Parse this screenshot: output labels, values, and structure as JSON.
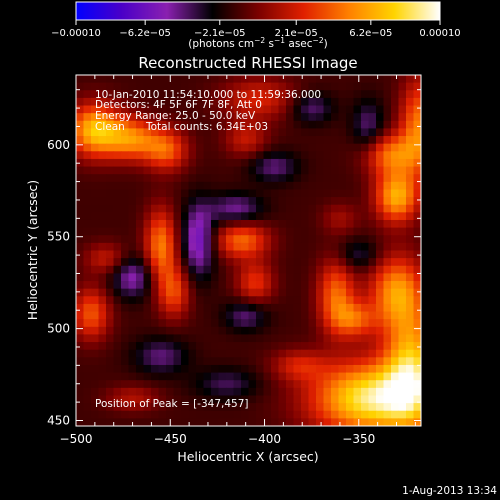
{
  "chart_data": {
    "type": "heatmap",
    "title": "Reconstructed RHESSI Image",
    "xlabel": "Heliocentric X (arcsec)",
    "ylabel": "Heliocentric Y (arcsec)",
    "xlim": [
      -500,
      -317
    ],
    "ylim": [
      447,
      638
    ],
    "x_ticks": [
      -500,
      -450,
      -400,
      -350
    ],
    "x_tick_labels": [
      "−500",
      "−450",
      "−400",
      "−350"
    ],
    "y_ticks": [
      450,
      500,
      550,
      600
    ],
    "y_tick_labels": [
      "450",
      "500",
      "550",
      "600"
    ],
    "colorbar": {
      "range": [
        -0.0001,
        0.0001
      ],
      "tick_values": [
        -0.0001,
        -6.2e-05,
        -2.1e-05,
        2.1e-05,
        6.2e-05,
        0.0001
      ],
      "tick_labels": [
        "−0.00010",
        "−6.2e−05",
        "−2.1e−05",
        "2.1e−05",
        "6.2e−05",
        "0.00010"
      ],
      "label": "(photons cm",
      "label_exp1": "−2",
      "label_mid": " s",
      "label_exp2": "−1",
      "label_mid2": " asec",
      "label_exp3": "−2",
      "label_end": ")",
      "colormap": [
        "#0000ff",
        "#4a00c8",
        "#8a20b0",
        "#000000",
        "#7a0000",
        "#e02000",
        "#ff8000",
        "#ffd400",
        "#ffffff"
      ]
    },
    "annotations": {
      "time_range": "10-Jan-2010 11:54:10.000 to 11:59:36.000",
      "detectors": "Detectors: 4F 5F 6F 7F 8F, Att 0",
      "energy": "Energy Range: 25.0 - 50.0 keV",
      "method": "Clean",
      "counts": "Total counts: 6.34E+03",
      "peak": "Position of Peak = [-347,457]"
    },
    "peak": {
      "x": -347,
      "y": 457
    },
    "features": [
      {
        "x": -343,
        "y": 462,
        "sx": 22,
        "sy": 14,
        "value": 1.0
      },
      {
        "x": -322,
        "y": 480,
        "sx": 10,
        "sy": 22,
        "value": 0.75
      },
      {
        "x": -330,
        "y": 520,
        "sx": 10,
        "sy": 14,
        "value": 0.65
      },
      {
        "x": -330,
        "y": 572,
        "sx": 8,
        "sy": 10,
        "value": 0.75
      },
      {
        "x": -333,
        "y": 595,
        "sx": 10,
        "sy": 8,
        "value": 0.55
      },
      {
        "x": -318,
        "y": 610,
        "sx": 7,
        "sy": 18,
        "value": 0.6
      },
      {
        "x": -490,
        "y": 608,
        "sx": 10,
        "sy": 10,
        "value": 0.8
      },
      {
        "x": -470,
        "y": 603,
        "sx": 10,
        "sy": 8,
        "value": 0.6
      },
      {
        "x": -452,
        "y": 597,
        "sx": 8,
        "sy": 8,
        "value": 0.5
      },
      {
        "x": -403,
        "y": 625,
        "sx": 14,
        "sy": 8,
        "value": 0.35
      },
      {
        "x": -410,
        "y": 603,
        "sx": 8,
        "sy": 7,
        "value": 0.3
      },
      {
        "x": -455,
        "y": 545,
        "sx": 6,
        "sy": 14,
        "value": 0.6
      },
      {
        "x": -448,
        "y": 520,
        "sx": 6,
        "sy": 10,
        "value": 0.45
      },
      {
        "x": -412,
        "y": 548,
        "sx": 10,
        "sy": 7,
        "value": 0.55
      },
      {
        "x": -405,
        "y": 525,
        "sx": 7,
        "sy": 8,
        "value": 0.4
      },
      {
        "x": -362,
        "y": 518,
        "sx": 7,
        "sy": 14,
        "value": 0.55
      },
      {
        "x": -352,
        "y": 505,
        "sx": 8,
        "sy": 7,
        "value": 0.45
      },
      {
        "x": -492,
        "y": 508,
        "sx": 7,
        "sy": 10,
        "value": 0.5
      },
      {
        "x": -484,
        "y": 538,
        "sx": 8,
        "sy": 6,
        "value": 0.3
      },
      {
        "x": -382,
        "y": 480,
        "sx": 10,
        "sy": 6,
        "value": 0.3
      },
      {
        "x": -470,
        "y": 462,
        "sx": 10,
        "sy": 5,
        "value": 0.25
      },
      {
        "x": -360,
        "y": 560,
        "sx": 7,
        "sy": 6,
        "value": 0.2
      },
      {
        "x": -435,
        "y": 548,
        "sx": 6,
        "sy": 14,
        "value": -0.5
      },
      {
        "x": -415,
        "y": 565,
        "sx": 10,
        "sy": 6,
        "value": -0.35
      },
      {
        "x": -410,
        "y": 507,
        "sx": 8,
        "sy": 6,
        "value": -0.3
      },
      {
        "x": -470,
        "y": 528,
        "sx": 8,
        "sy": 8,
        "value": -0.4
      },
      {
        "x": -395,
        "y": 588,
        "sx": 9,
        "sy": 6,
        "value": -0.3
      },
      {
        "x": -350,
        "y": 540,
        "sx": 8,
        "sy": 6,
        "value": -0.25
      },
      {
        "x": -455,
        "y": 485,
        "sx": 10,
        "sy": 7,
        "value": -0.3
      },
      {
        "x": -420,
        "y": 470,
        "sx": 12,
        "sy": 6,
        "value": -0.25
      },
      {
        "x": -375,
        "y": 620,
        "sx": 8,
        "sy": 6,
        "value": -0.3
      },
      {
        "x": -345,
        "y": 610,
        "sx": 6,
        "sy": 10,
        "value": -0.3
      }
    ]
  },
  "footer": {
    "date": "1-Aug-2013 13:34"
  }
}
